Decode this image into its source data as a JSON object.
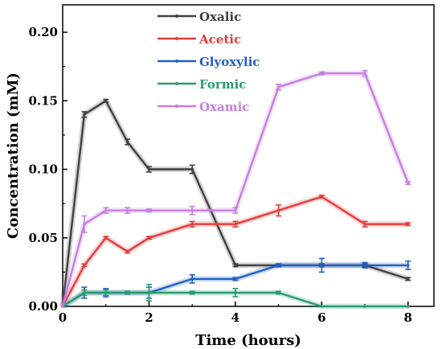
{
  "chart_data": {
    "type": "line",
    "xlabel": "Time (hours)",
    "ylabel": "Concentration (mM)",
    "xlim": [
      0,
      8.6
    ],
    "ylim": [
      0,
      0.22
    ],
    "xticks": [
      0,
      2,
      4,
      6,
      8
    ],
    "xtick_labels": [
      "0",
      "2",
      "4",
      "6",
      "8"
    ],
    "yticks": [
      0,
      0.05,
      0.1,
      0.15,
      0.2
    ],
    "ytick_labels": [
      "0.00",
      "0.05",
      "0.10",
      "0.15",
      "0.20"
    ],
    "legend_position": "top-center",
    "grid": false,
    "series": [
      {
        "name": "Oxalic",
        "color": "#404040",
        "x": [
          0,
          0.5,
          1,
          1.5,
          2,
          3,
          4,
          5,
          6,
          7,
          8
        ],
        "y": [
          0,
          0.14,
          0.15,
          0.12,
          0.1,
          0.1,
          0.03,
          0.03,
          0.03,
          0.03,
          0.02
        ],
        "err": [
          0,
          0.002,
          0.001,
          0.002,
          0.002,
          0.003,
          0.001,
          0.001,
          0.001,
          0.001,
          0.001
        ]
      },
      {
        "name": "Acetic",
        "color": "#e63c3c",
        "x": [
          0,
          0.5,
          1,
          1.5,
          2,
          3,
          4,
          5,
          6,
          7,
          8
        ],
        "y": [
          0,
          0.03,
          0.05,
          0.04,
          0.05,
          0.06,
          0.06,
          0.07,
          0.08,
          0.06,
          0.06
        ],
        "err": [
          0,
          0.001,
          0.001,
          0.001,
          0.001,
          0.002,
          0.002,
          0.004,
          0.001,
          0.002,
          0.001
        ]
      },
      {
        "name": "Glyoxylic",
        "color": "#1f5fc8",
        "x": [
          0,
          0.5,
          1,
          1.5,
          2,
          3,
          4,
          5,
          6,
          7,
          8
        ],
        "y": [
          0,
          0.01,
          0.01,
          0.01,
          0.01,
          0.02,
          0.02,
          0.03,
          0.03,
          0.03,
          0.03
        ],
        "err": [
          0,
          0.004,
          0.003,
          0.001,
          0.004,
          0.003,
          0.001,
          0.001,
          0.005,
          0.002,
          0.003
        ]
      },
      {
        "name": "Formic",
        "color": "#2a9d6f",
        "x": [
          0,
          0.5,
          1,
          1.5,
          2,
          3,
          4,
          5,
          6,
          7,
          8
        ],
        "y": [
          0,
          0.01,
          0.01,
          0.01,
          0.01,
          0.01,
          0.01,
          0.01,
          0.0,
          0.0,
          0.0
        ],
        "err": [
          0,
          0.002,
          0.002,
          0.001,
          0.006,
          0.001,
          0.003,
          0.001,
          0,
          0,
          0
        ]
      },
      {
        "name": "Oxamic",
        "color": "#c77ee0",
        "x": [
          0,
          0.5,
          1,
          1.5,
          2,
          3,
          4,
          5,
          6,
          7,
          8
        ],
        "y": [
          0,
          0.06,
          0.07,
          0.07,
          0.07,
          0.07,
          0.07,
          0.16,
          0.17,
          0.17,
          0.09
        ],
        "err": [
          0,
          0.006,
          0.002,
          0.002,
          0.001,
          0.003,
          0.002,
          0.002,
          0.001,
          0.002,
          0.001
        ]
      }
    ]
  }
}
